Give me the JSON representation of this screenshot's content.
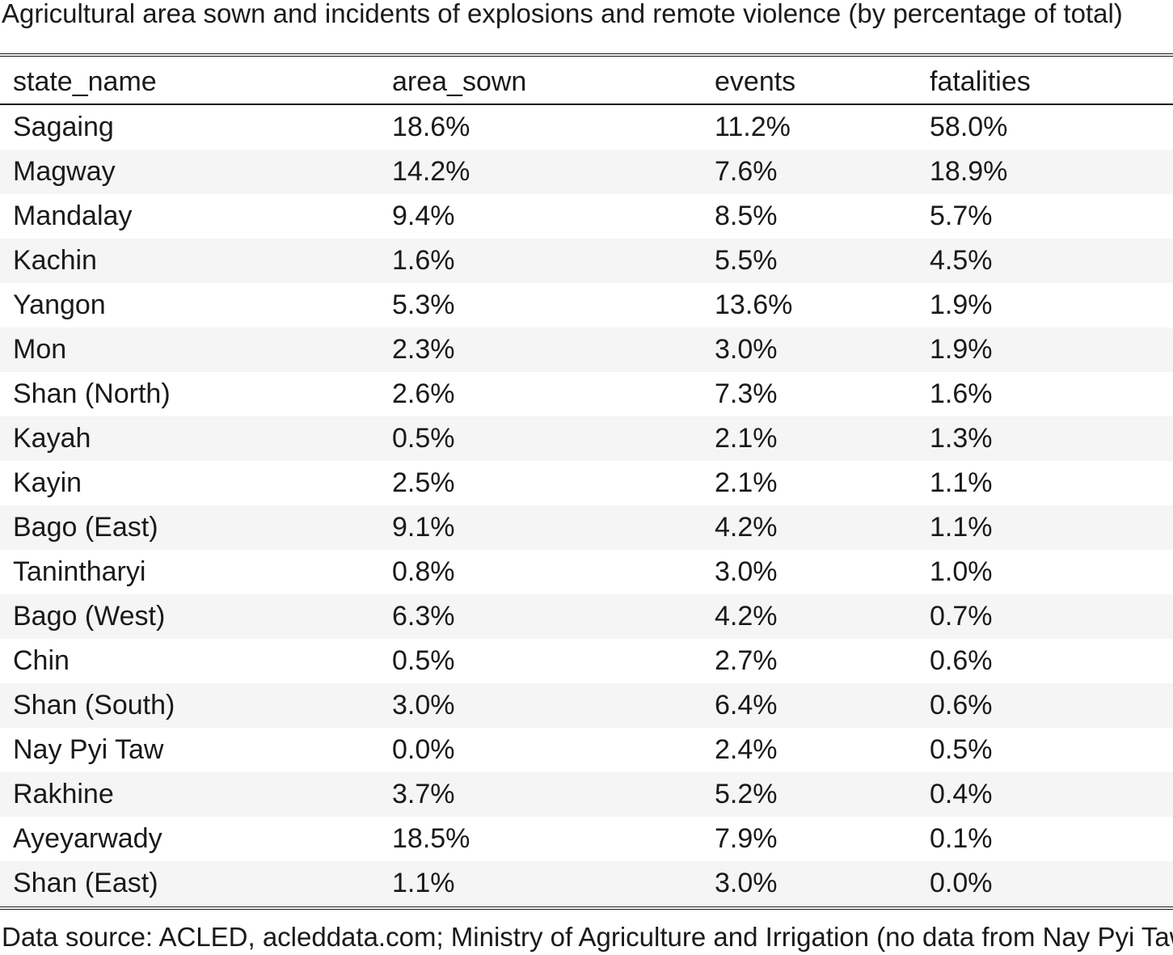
{
  "title": "Agricultural area sown and incidents of explosions and remote violence (by percentage of total)",
  "source": "Data source: ACLED, acleddata.com; Ministry of Agriculture and Irrigation (no data from Nay Pyi Taw)",
  "chart_data": {
    "type": "table",
    "title": "Agricultural area sown and incidents of explosions and remote violence (by percentage of total)",
    "columns": [
      "state_name",
      "area_sown",
      "events",
      "fatalities"
    ],
    "rows": [
      [
        "Sagaing",
        "18.6%",
        "11.2%",
        "58.0%"
      ],
      [
        "Magway",
        "14.2%",
        "7.6%",
        "18.9%"
      ],
      [
        "Mandalay",
        "9.4%",
        "8.5%",
        "5.7%"
      ],
      [
        "Kachin",
        "1.6%",
        "5.5%",
        "4.5%"
      ],
      [
        "Yangon",
        "5.3%",
        "13.6%",
        "1.9%"
      ],
      [
        "Mon",
        "2.3%",
        "3.0%",
        "1.9%"
      ],
      [
        "Shan (North)",
        "2.6%",
        "7.3%",
        "1.6%"
      ],
      [
        "Kayah",
        "0.5%",
        "2.1%",
        "1.3%"
      ],
      [
        "Kayin",
        "2.5%",
        "2.1%",
        "1.1%"
      ],
      [
        "Bago (East)",
        "9.1%",
        "4.2%",
        "1.1%"
      ],
      [
        "Tanintharyi",
        "0.8%",
        "3.0%",
        "1.0%"
      ],
      [
        "Bago (West)",
        "6.3%",
        "4.2%",
        "0.7%"
      ],
      [
        "Chin",
        "0.5%",
        "2.7%",
        "0.6%"
      ],
      [
        "Shan (South)",
        "3.0%",
        "6.4%",
        "0.6%"
      ],
      [
        "Nay Pyi Taw",
        "0.0%",
        "2.4%",
        "0.5%"
      ],
      [
        "Rakhine",
        "3.7%",
        "5.2%",
        "0.4%"
      ],
      [
        "Ayeyarwady",
        "18.5%",
        "7.9%",
        "0.1%"
      ],
      [
        "Shan (East)",
        "1.1%",
        "3.0%",
        "0.0%"
      ]
    ],
    "source": "Data source: ACLED, acleddata.com; Ministry of Agriculture and Irrigation (no data from Nay Pyi Taw)"
  }
}
